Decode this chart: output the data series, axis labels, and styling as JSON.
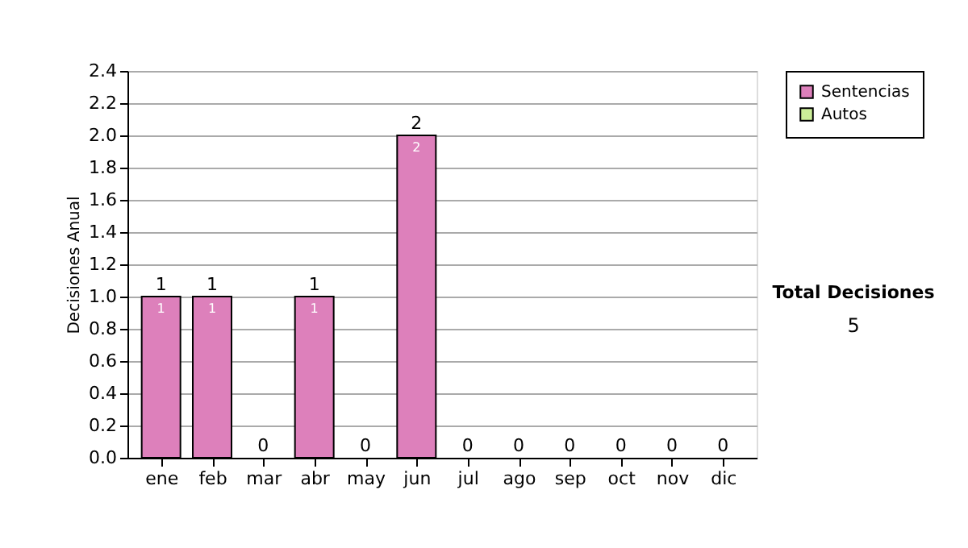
{
  "chart_data": {
    "type": "bar",
    "stacked": true,
    "ylabel": "Decisiones Anual",
    "categories": [
      "ene",
      "feb",
      "mar",
      "abr",
      "may",
      "jun",
      "jul",
      "ago",
      "sep",
      "oct",
      "nov",
      "dic"
    ],
    "series": [
      {
        "name": "Sentencias",
        "color": "#dd80bb",
        "values": [
          1,
          1,
          0,
          1,
          0,
          2,
          0,
          0,
          0,
          0,
          0,
          0
        ],
        "value_labels": [
          "1",
          "1",
          null,
          "1",
          null,
          "2",
          null,
          null,
          null,
          null,
          null,
          null
        ]
      },
      {
        "name": "Autos",
        "color": "#ccee99",
        "values": [
          0,
          0,
          0,
          0,
          0,
          0,
          0,
          0,
          0,
          0,
          0,
          0
        ]
      }
    ],
    "totals": [
      "1",
      "1",
      "0",
      "1",
      "0",
      "2",
      "0",
      "0",
      "0",
      "0",
      "0",
      "0"
    ],
    "ylim": [
      0,
      2.4
    ],
    "yticks": [
      {
        "value": 0,
        "label": "0.0"
      },
      {
        "value": 0.2,
        "label": "0.2"
      },
      {
        "value": 0.4,
        "label": "0.4"
      },
      {
        "value": 0.6,
        "label": "0.6"
      },
      {
        "value": 0.8,
        "label": "0.8"
      },
      {
        "value": 1,
        "label": "1.0"
      },
      {
        "value": 1.2,
        "label": "1.2"
      },
      {
        "value": 1.4,
        "label": "1.4"
      },
      {
        "value": 1.6,
        "label": "1.6"
      },
      {
        "value": 1.8,
        "label": "1.8"
      },
      {
        "value": 2,
        "label": "2.0"
      },
      {
        "value": 2.2,
        "label": "2.2"
      },
      {
        "value": 2.4,
        "label": "2.4"
      }
    ],
    "grid": "y",
    "legend": "right",
    "annotations": [
      "Total Decisiones",
      "5"
    ]
  }
}
